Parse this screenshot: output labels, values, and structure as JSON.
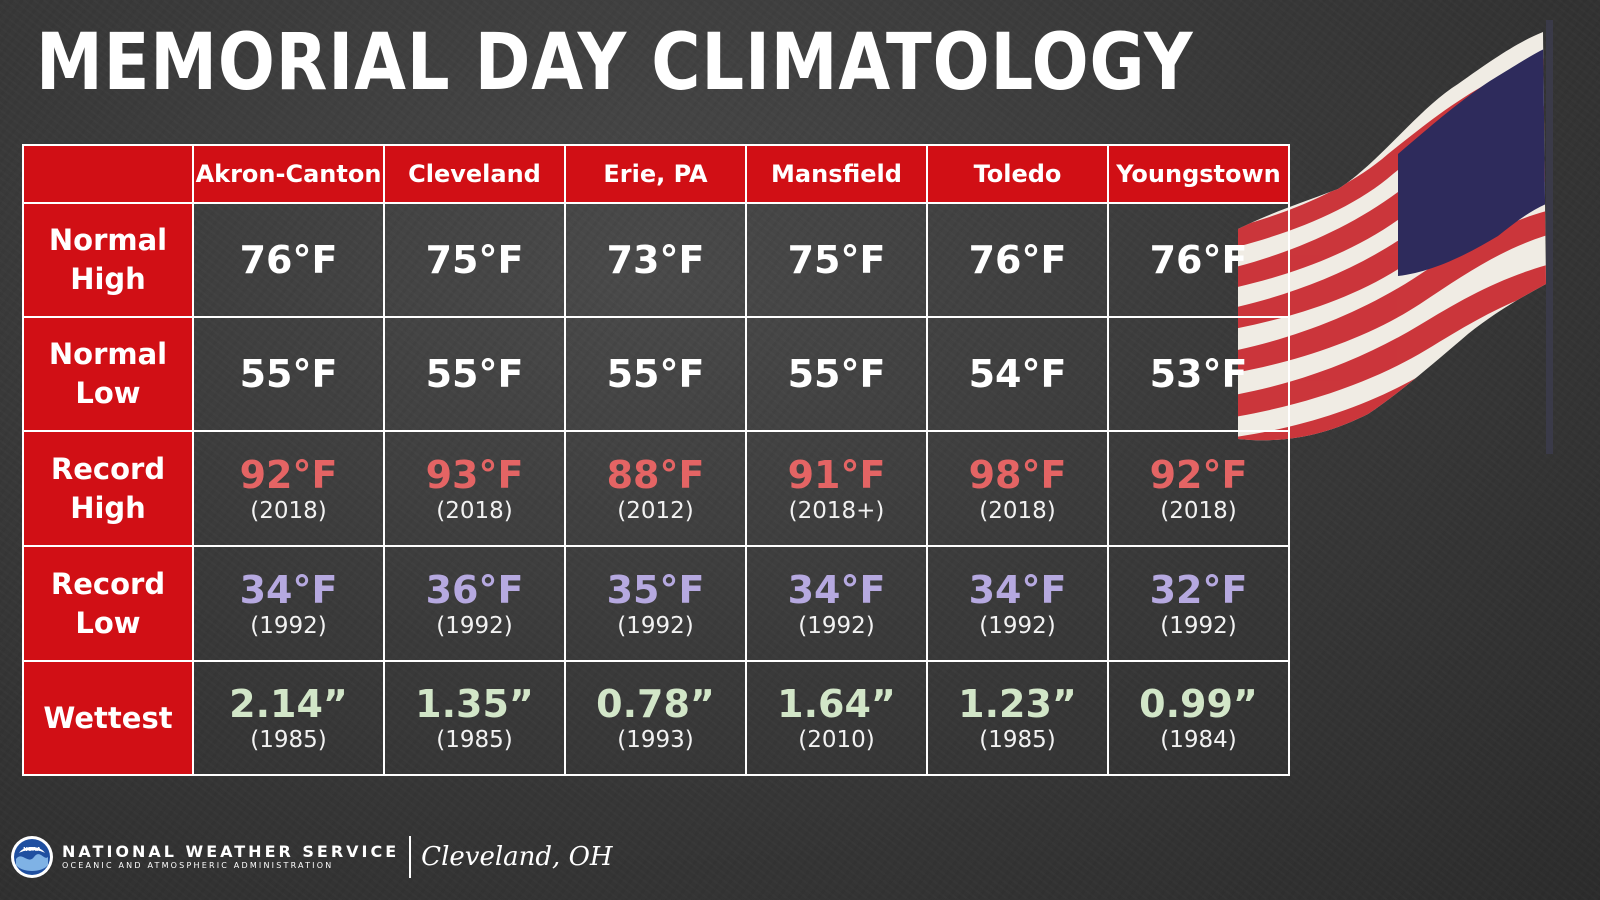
{
  "title": "MEMORIAL DAY CLIMATOLOGY",
  "columns": [
    "Akron-Canton",
    "Cleveland",
    "Erie, PA",
    "Mansfield",
    "Toledo",
    "Youngstown"
  ],
  "rows": {
    "normal_high": {
      "label_line1": "Normal",
      "label_line2": "High",
      "values": [
        "76°F",
        "75°F",
        "73°F",
        "75°F",
        "76°F",
        "76°F"
      ]
    },
    "normal_low": {
      "label_line1": "Normal",
      "label_line2": "Low",
      "values": [
        "55°F",
        "55°F",
        "55°F",
        "55°F",
        "54°F",
        "53°F"
      ]
    },
    "record_high": {
      "label_line1": "Record",
      "label_line2": "High",
      "values": [
        "92°F",
        "93°F",
        "88°F",
        "91°F",
        "98°F",
        "92°F"
      ],
      "years": [
        "(2018)",
        "(2018)",
        "(2012)",
        "(2018+)",
        "(2018)",
        "(2018)"
      ]
    },
    "record_low": {
      "label_line1": "Record",
      "label_line2": "Low",
      "values": [
        "34°F",
        "36°F",
        "35°F",
        "34°F",
        "34°F",
        "32°F"
      ],
      "years": [
        "(1992)",
        "(1992)",
        "(1992)",
        "(1992)",
        "(1992)",
        "(1992)"
      ]
    },
    "wettest": {
      "label_line1": "Wettest",
      "values": [
        "2.14”",
        "1.35”",
        "0.78”",
        "1.64”",
        "1.23”",
        "0.99”"
      ],
      "years": [
        "(1985)",
        "(1985)",
        "(1993)",
        "(2010)",
        "(1985)",
        "(1984)"
      ]
    }
  },
  "colors": {
    "header_red": "#d10f15",
    "record_high": "#e46464",
    "record_low": "#b6a9e0",
    "wettest": "#d2e6c8"
  },
  "footer": {
    "agency": "NATIONAL WEATHER SERVICE",
    "sub_agency": "OCEANIC AND ATMOSPHERIC ADMINISTRATION",
    "office": "Cleveland, OH",
    "logo_text": "NOAA"
  },
  "icons": {
    "logo": "noaa-logo-icon",
    "flag": "american-flag-icon"
  }
}
